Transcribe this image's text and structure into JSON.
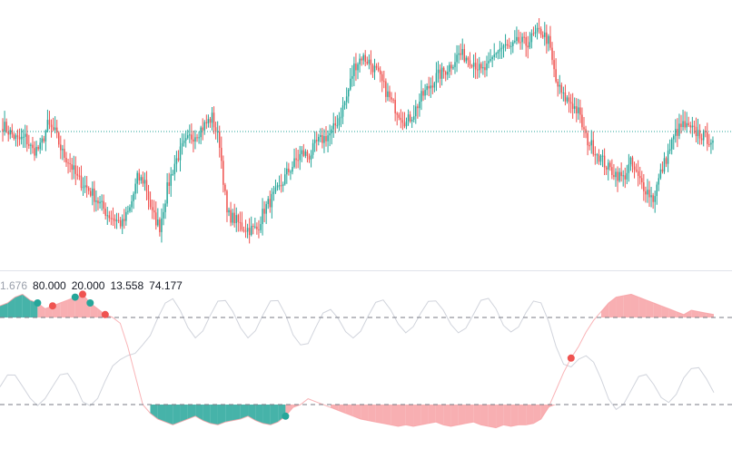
{
  "colors": {
    "up": "#26a69a",
    "down": "#ef5350",
    "price_line": "#26a69a",
    "fill_green": "#26a69a",
    "fill_red": "#f7a1a5",
    "fill_gray": "#d1d4dc",
    "level_line": "#787b86",
    "ghost_line": "#d1d4dc"
  },
  "legend": {
    "value_1": "1.676",
    "upper_level": "80.000",
    "lower_level": "20.000",
    "value_4": "13.558",
    "value_5": "74.177"
  },
  "chart_data": [
    {
      "type": "candlestick",
      "title": "",
      "xlabel": "",
      "ylabel": "",
      "grid": false,
      "ylim": [
        0,
        100
      ],
      "last_price_line": 52.5,
      "trend_close": [
        55,
        52,
        49,
        50,
        45,
        46,
        55,
        52,
        44,
        40,
        34,
        31,
        28,
        24,
        20,
        18,
        16,
        22,
        34,
        33,
        20,
        15,
        30,
        40,
        46,
        50,
        52,
        55,
        58,
        48,
        20,
        18,
        15,
        14,
        14,
        22,
        26,
        30,
        36,
        40,
        44,
        43,
        48,
        50,
        52,
        58,
        66,
        78,
        82,
        80,
        76,
        70,
        64,
        60,
        56,
        60,
        66,
        70,
        74,
        76,
        79,
        83,
        82,
        80,
        76,
        78,
        84,
        86,
        85,
        88,
        87,
        90,
        92,
        88,
        72,
        66,
        64,
        60,
        50,
        46,
        42,
        38,
        36,
        34,
        40,
        34,
        30,
        26,
        36,
        44,
        52,
        55,
        53,
        52,
        50,
        49
      ]
    },
    {
      "type": "area",
      "title": "",
      "xlabel": "",
      "ylabel": "",
      "grid": false,
      "ylim": [
        0,
        100
      ],
      "levels": [
        80,
        20
      ],
      "series": [
        {
          "values": [
            88,
            90,
            94,
            96,
            92,
            90,
            86,
            88,
            90,
            92,
            94,
            96,
            90,
            86,
            82,
            80,
            76,
            60,
            40,
            20,
            14,
            10,
            8,
            6,
            8,
            10,
            12,
            9,
            7,
            6,
            8,
            9,
            10,
            12,
            9,
            7,
            6,
            8,
            12,
            18,
            20,
            24,
            22,
            20,
            18,
            16,
            14,
            12,
            10,
            9,
            8,
            7,
            6,
            5,
            6,
            5,
            6,
            7,
            8,
            6,
            5,
            6,
            7,
            8,
            6,
            5,
            4,
            6,
            5,
            6,
            6,
            7,
            10,
            18,
            30,
            42,
            52,
            60,
            70,
            78,
            84,
            90,
            94,
            95,
            96,
            94,
            92,
            90,
            88,
            86,
            84,
            82,
            85,
            84,
            83,
            82
          ]
        }
      ]
    }
  ]
}
